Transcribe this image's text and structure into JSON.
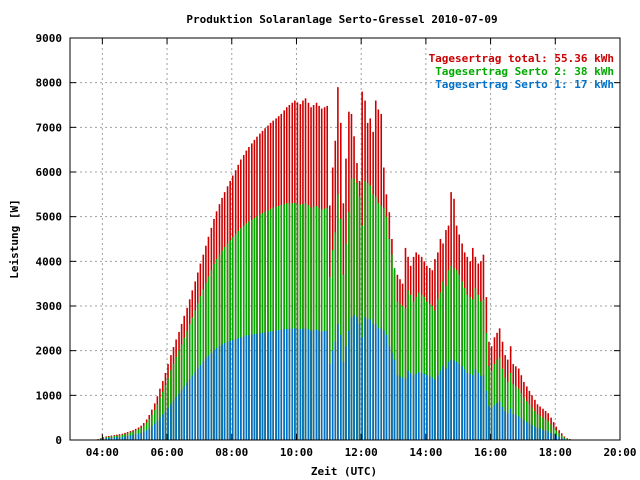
{
  "chart_data": {
    "type": "bar",
    "title": "Produktion Solaranlage Serto-Gressel 2010-07-09",
    "xlabel": "Zeit (UTC)",
    "ylabel": "Leistung [W]",
    "xlim": [
      3.0,
      20.0
    ],
    "ylim": [
      0,
      9000
    ],
    "x_ticks": [
      {
        "value": 4,
        "label": "04:00"
      },
      {
        "value": 6,
        "label": "06:00"
      },
      {
        "value": 8,
        "label": "08:00"
      },
      {
        "value": 10,
        "label": "10:00"
      },
      {
        "value": 12,
        "label": "12:00"
      },
      {
        "value": 14,
        "label": "14:00"
      },
      {
        "value": 16,
        "label": "16:00"
      },
      {
        "value": 18,
        "label": "18:00"
      },
      {
        "value": 20,
        "label": "20:00"
      }
    ],
    "y_ticks": [
      {
        "value": 0,
        "label": "0"
      },
      {
        "value": 1000,
        "label": "1000"
      },
      {
        "value": 2000,
        "label": "2000"
      },
      {
        "value": 3000,
        "label": "3000"
      },
      {
        "value": 4000,
        "label": "4000"
      },
      {
        "value": 5000,
        "label": "5000"
      },
      {
        "value": 6000,
        "label": "6000"
      },
      {
        "value": 7000,
        "label": "7000"
      },
      {
        "value": 8000,
        "label": "8000"
      },
      {
        "value": 9000,
        "label": "9000"
      }
    ],
    "grid": true,
    "legend_position": "top-right",
    "series": [
      {
        "name": "Tagesertrag total: 55.36 kWh",
        "color": "#cc0000"
      },
      {
        "name": "Tagesertrag Serto 2: 38 kWh",
        "color": "#00aa00"
      },
      {
        "name": "Tagesertrag Serto 1: 17 kWh",
        "color": "#0070c8"
      }
    ],
    "stacked_series": [
      {
        "name": "Serto 1",
        "color": "#0070c8"
      },
      {
        "name": "Serto 2",
        "color": "#00aa00"
      },
      {
        "name": "total",
        "color": "#cc0000"
      }
    ],
    "time_start": "03:52",
    "time_step_minutes": 5,
    "x": [
      3.87,
      3.95,
      4.03,
      4.12,
      4.2,
      4.28,
      4.37,
      4.45,
      4.53,
      4.62,
      4.7,
      4.78,
      4.87,
      4.95,
      5.03,
      5.12,
      5.2,
      5.28,
      5.37,
      5.45,
      5.53,
      5.62,
      5.7,
      5.78,
      5.87,
      5.95,
      6.03,
      6.12,
      6.2,
      6.28,
      6.37,
      6.45,
      6.53,
      6.62,
      6.7,
      6.78,
      6.87,
      6.95,
      7.03,
      7.12,
      7.2,
      7.28,
      7.37,
      7.45,
      7.53,
      7.62,
      7.7,
      7.78,
      7.87,
      7.95,
      8.03,
      8.12,
      8.2,
      8.28,
      8.37,
      8.45,
      8.53,
      8.62,
      8.7,
      8.78,
      8.87,
      8.95,
      9.03,
      9.12,
      9.2,
      9.28,
      9.37,
      9.45,
      9.53,
      9.62,
      9.7,
      9.78,
      9.87,
      9.95,
      10.03,
      10.12,
      10.2,
      10.28,
      10.37,
      10.45,
      10.53,
      10.62,
      10.7,
      10.78,
      10.87,
      10.95,
      11.03,
      11.12,
      11.2,
      11.28,
      11.37,
      11.45,
      11.53,
      11.62,
      11.7,
      11.78,
      11.87,
      11.95,
      12.03,
      12.12,
      12.2,
      12.28,
      12.37,
      12.45,
      12.53,
      12.62,
      12.7,
      12.78,
      12.87,
      12.95,
      13.03,
      13.12,
      13.2,
      13.28,
      13.37,
      13.45,
      13.53,
      13.62,
      13.7,
      13.78,
      13.87,
      13.95,
      14.03,
      14.12,
      14.2,
      14.28,
      14.37,
      14.45,
      14.53,
      14.62,
      14.7,
      14.78,
      14.87,
      14.95,
      15.03,
      15.12,
      15.2,
      15.28,
      15.37,
      15.45,
      15.53,
      15.62,
      15.7,
      15.78,
      15.87,
      15.95,
      16.03,
      16.12,
      16.2,
      16.28,
      16.37,
      16.45,
      16.53,
      16.62,
      16.7,
      16.78,
      16.87,
      16.95,
      17.03,
      17.12,
      17.2,
      17.28,
      17.37,
      17.45,
      17.53,
      17.62,
      17.7,
      17.78,
      17.87,
      17.95,
      18.03,
      18.12,
      18.2,
      18.28,
      18.37,
      18.45,
      18.53,
      18.62,
      18.7,
      18.78,
      18.87,
      18.95,
      19.03,
      19.12
    ],
    "total": [
      20,
      40,
      60,
      80,
      90,
      100,
      110,
      120,
      130,
      140,
      160,
      180,
      200,
      220,
      250,
      280,
      320,
      380,
      460,
      560,
      680,
      820,
      980,
      1150,
      1320,
      1500,
      1700,
      1900,
      2080,
      2250,
      2420,
      2600,
      2780,
      2960,
      3150,
      3350,
      3550,
      3750,
      3950,
      4150,
      4350,
      4550,
      4750,
      4950,
      5120,
      5280,
      5420,
      5550,
      5680,
      5800,
      5920,
      6040,
      6160,
      6280,
      6380,
      6480,
      6560,
      6640,
      6720,
      6790,
      6860,
      6920,
      6980,
      7040,
      7100,
      7150,
      7200,
      7250,
      7300,
      7380,
      7450,
      7500,
      7550,
      7600,
      7560,
      7520,
      7600,
      7650,
      7550,
      7450,
      7500,
      7550,
      7480,
      7420,
      7450,
      7480,
      5250,
      6100,
      6700,
      7900,
      7100,
      5300,
      6300,
      7350,
      7300,
      6800,
      6200,
      5800,
      7800,
      7600,
      7100,
      7200,
      6900,
      7600,
      7400,
      7300,
      6100,
      5500,
      5100,
      4500,
      3800,
      3700,
      3600,
      3500,
      4300,
      4100,
      3900,
      4100,
      4200,
      4150,
      4100,
      4000,
      3900,
      3850,
      3800,
      4050,
      4200,
      4500,
      4400,
      4700,
      4800,
      5550,
      5400,
      4800,
      4600,
      4400,
      4200,
      4100,
      4000,
      4300,
      4100,
      3950,
      4000,
      4150,
      3200,
      2200,
      2100,
      2300,
      2400,
      2500,
      2200,
      1900,
      1800,
      2100,
      1700,
      1650,
      1600,
      1450,
      1300,
      1200,
      1100,
      1000,
      900,
      800,
      750,
      700,
      650,
      600,
      500,
      400,
      300,
      220,
      150,
      80,
      40,
      20
    ],
    "serto2_top": [
      15,
      30,
      45,
      60,
      70,
      80,
      90,
      95,
      105,
      115,
      130,
      150,
      170,
      190,
      215,
      240,
      275,
      320,
      390,
      470,
      560,
      670,
      800,
      940,
      1080,
      1230,
      1390,
      1560,
      1710,
      1860,
      2000,
      2140,
      2290,
      2440,
      2590,
      2740,
      2900,
      3060,
      3220,
      3370,
      3520,
      3660,
      3800,
      3940,
      4050,
      4150,
      4240,
      4320,
      4400,
      4470,
      4540,
      4610,
      4680,
      4740,
      4800,
      4850,
      4890,
      4930,
      4970,
      5010,
      5050,
      5080,
      5110,
      5140,
      5170,
      5200,
      5220,
      5240,
      5260,
      5280,
      5300,
      5300,
      5300,
      5310,
      5290,
      5270,
      5280,
      5300,
      5260,
      5200,
      5220,
      5240,
      5200,
      5160,
      5180,
      5200,
      3650,
      4250,
      4650,
      5500,
      4950,
      3700,
      4400,
      5100,
      5850,
      5850,
      5750,
      5450,
      4800,
      5800,
      5750,
      5700,
      5500,
      5450,
      5300,
      5250,
      5200,
      5000,
      4500,
      4150,
      3850,
      3100,
      3050,
      3000,
      2950,
      3350,
      3250,
      3100,
      3200,
      3300,
      3250,
      3200,
      3100,
      3050,
      3000,
      2900,
      3150,
      3300,
      3550,
      3450,
      3800,
      3900,
      3850,
      3800,
      3700,
      3550,
      3400,
      3250,
      3200,
      3150,
      3400,
      3250,
      3100,
      3150,
      2400,
      1650,
      1550,
      1700,
      1800,
      1850,
      1600,
      1400,
      1300,
      1500,
      1250,
      1200,
      1150,
      1050,
      950,
      870,
      800,
      720,
      650,
      580,
      540,
      500,
      460,
      420,
      350,
      280,
      210,
      155,
      105,
      55,
      28,
      14
    ],
    "serto1_top": [
      10,
      20,
      30,
      40,
      45,
      50,
      55,
      60,
      65,
      70,
      80,
      90,
      100,
      110,
      125,
      140,
      160,
      185,
      220,
      260,
      310,
      370,
      430,
      500,
      570,
      640,
      720,
      800,
      880,
      960,
      1040,
      1120,
      1200,
      1280,
      1360,
      1440,
      1520,
      1600,
      1680,
      1760,
      1830,
      1890,
      1950,
      2010,
      2060,
      2100,
      2140,
      2170,
      2200,
      2220,
      2240,
      2260,
      2280,
      2300,
      2320,
      2340,
      2350,
      2360,
      2370,
      2380,
      2390,
      2400,
      2410,
      2420,
      2430,
      2440,
      2450,
      2460,
      2470,
      2480,
      2490,
      2490,
      2490,
      2500,
      2490,
      2480,
      2490,
      2500,
      2480,
      2450,
      2460,
      2470,
      2450,
      2430,
      2440,
      2450,
      1700,
      2000,
      2200,
      2600,
      2350,
      1750,
      2100,
      2450,
      2750,
      2800,
      2750,
      2600,
      2300,
      2750,
      2700,
      2700,
      2600,
      2600,
      2500,
      2500,
      2450,
      2350,
      2100,
      1950,
      1800,
      1450,
      1420,
      1400,
      1380,
      1550,
      1500,
      1450,
      1480,
      1520,
      1500,
      1480,
      1450,
      1420,
      1400,
      1350,
      1450,
      1550,
      1650,
      1600,
      1750,
      1800,
      1780,
      1750,
      1700,
      1650,
      1580,
      1500,
      1480,
      1450,
      1580,
      1500,
      1430,
      1450,
      1100,
      760,
      720,
      780,
      830,
      860,
      740,
      650,
      600,
      700,
      580,
      560,
      530,
      490,
      440,
      400,
      370,
      330,
      300,
      270,
      250,
      230,
      210,
      190,
      160,
      130,
      100,
      70,
      50,
      25,
      13,
      6
    ]
  }
}
